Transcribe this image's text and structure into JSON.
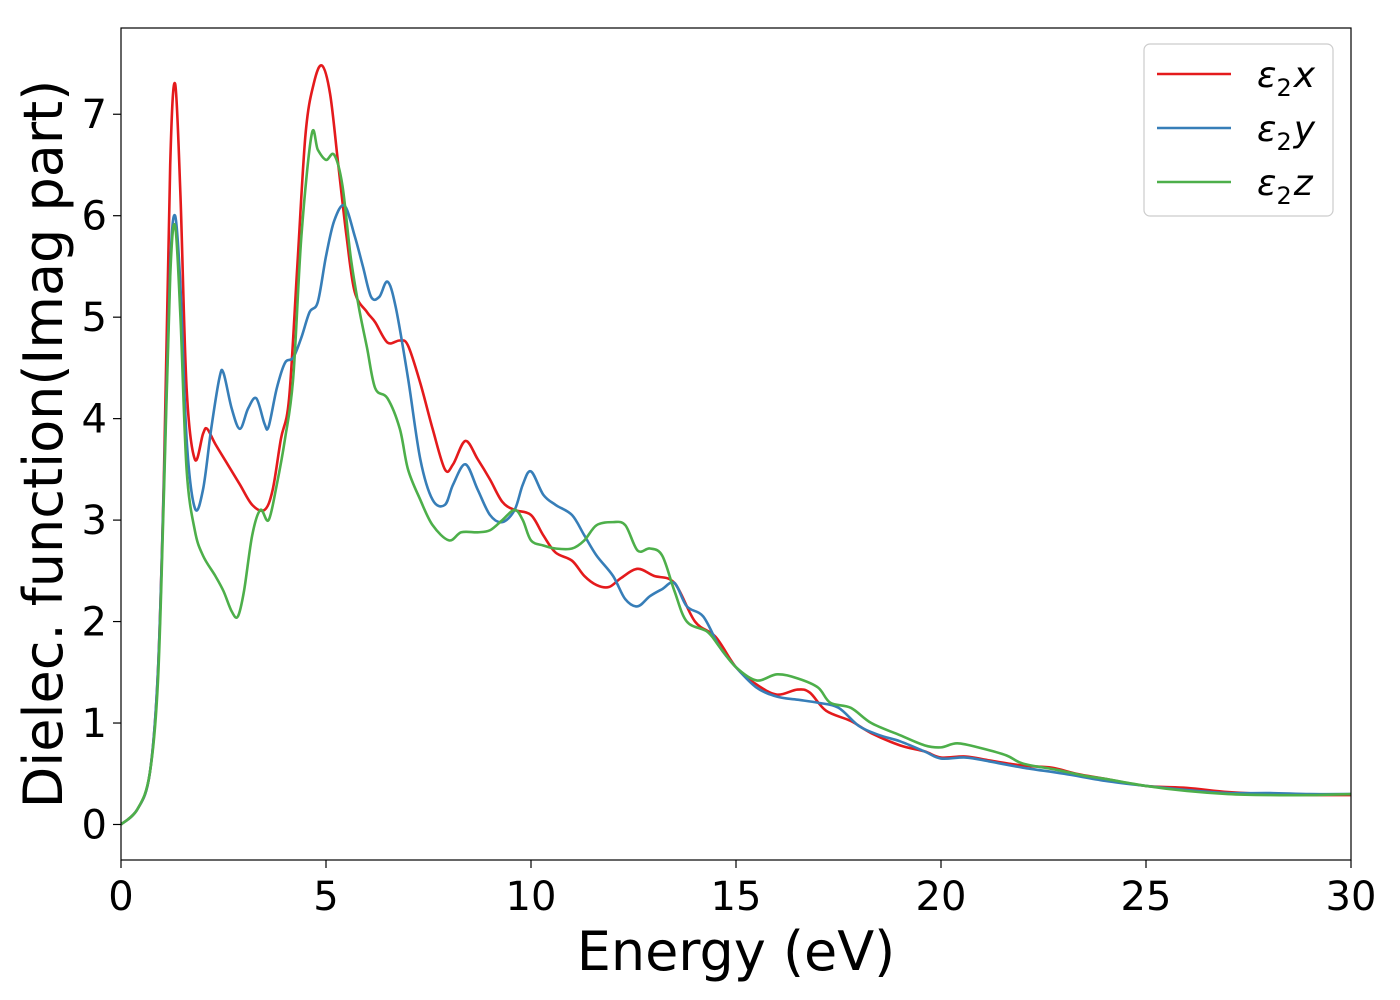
{
  "chart_data": {
    "type": "line",
    "xlabel": "Energy (eV)",
    "ylabel": "Dielec. function(Imag part)",
    "xlim": [
      0,
      30
    ],
    "ylim": [
      -0.35,
      7.85
    ],
    "xticks": [
      0,
      5,
      10,
      15,
      20,
      25,
      30
    ],
    "yticks": [
      0,
      1,
      2,
      3,
      4,
      5,
      6,
      7
    ],
    "grid": false,
    "legend": "top-right",
    "series": [
      {
        "name": "ε₂x",
        "legend": {
          "base": "ε",
          "sub": "2",
          "var": "x"
        },
        "color": "#e41a1c",
        "points": [
          [
            0,
            0
          ],
          [
            0.4,
            0.15
          ],
          [
            0.7,
            0.5
          ],
          [
            0.9,
            1.5
          ],
          [
            1.05,
            3.5
          ],
          [
            1.2,
            6.5
          ],
          [
            1.32,
            7.3
          ],
          [
            1.45,
            6.2
          ],
          [
            1.6,
            4.3
          ],
          [
            1.8,
            3.6
          ],
          [
            2.0,
            3.85
          ],
          [
            2.1,
            3.9
          ],
          [
            2.3,
            3.75
          ],
          [
            2.6,
            3.55
          ],
          [
            2.9,
            3.35
          ],
          [
            3.2,
            3.15
          ],
          [
            3.5,
            3.1
          ],
          [
            3.7,
            3.3
          ],
          [
            3.9,
            3.8
          ],
          [
            4.1,
            4.2
          ],
          [
            4.3,
            5.5
          ],
          [
            4.5,
            6.8
          ],
          [
            4.7,
            7.3
          ],
          [
            4.9,
            7.48
          ],
          [
            5.1,
            7.2
          ],
          [
            5.3,
            6.5
          ],
          [
            5.5,
            5.8
          ],
          [
            5.7,
            5.25
          ],
          [
            6.0,
            5.05
          ],
          [
            6.2,
            4.95
          ],
          [
            6.5,
            4.75
          ],
          [
            6.8,
            4.77
          ],
          [
            7.0,
            4.72
          ],
          [
            7.3,
            4.35
          ],
          [
            7.6,
            3.9
          ],
          [
            7.9,
            3.5
          ],
          [
            8.1,
            3.55
          ],
          [
            8.4,
            3.78
          ],
          [
            8.7,
            3.6
          ],
          [
            9.0,
            3.4
          ],
          [
            9.3,
            3.18
          ],
          [
            9.6,
            3.1
          ],
          [
            10.0,
            3.05
          ],
          [
            10.3,
            2.85
          ],
          [
            10.6,
            2.68
          ],
          [
            11.0,
            2.6
          ],
          [
            11.3,
            2.45
          ],
          [
            11.6,
            2.36
          ],
          [
            11.9,
            2.34
          ],
          [
            12.2,
            2.43
          ],
          [
            12.6,
            2.52
          ],
          [
            13.0,
            2.45
          ],
          [
            13.5,
            2.38
          ],
          [
            14.0,
            2.0
          ],
          [
            14.5,
            1.85
          ],
          [
            15.0,
            1.55
          ],
          [
            15.5,
            1.38
          ],
          [
            16.0,
            1.28
          ],
          [
            16.5,
            1.33
          ],
          [
            16.8,
            1.3
          ],
          [
            17.2,
            1.12
          ],
          [
            17.8,
            1.02
          ],
          [
            18.3,
            0.9
          ],
          [
            19.0,
            0.78
          ],
          [
            19.6,
            0.72
          ],
          [
            20.0,
            0.66
          ],
          [
            20.6,
            0.67
          ],
          [
            21.2,
            0.63
          ],
          [
            22.0,
            0.58
          ],
          [
            22.7,
            0.56
          ],
          [
            23.3,
            0.5
          ],
          [
            24.0,
            0.45
          ],
          [
            25.0,
            0.38
          ],
          [
            26.0,
            0.36
          ],
          [
            27.0,
            0.32
          ],
          [
            28.0,
            0.3
          ],
          [
            29.0,
            0.29
          ],
          [
            30.0,
            0.29
          ]
        ]
      },
      {
        "name": "ε₂y",
        "legend": {
          "base": "ε",
          "sub": "2",
          "var": "y"
        },
        "color": "#377eb8",
        "points": [
          [
            0,
            0
          ],
          [
            0.4,
            0.15
          ],
          [
            0.7,
            0.5
          ],
          [
            0.9,
            1.5
          ],
          [
            1.05,
            3.4
          ],
          [
            1.2,
            5.5
          ],
          [
            1.32,
            6.0
          ],
          [
            1.45,
            5.3
          ],
          [
            1.6,
            3.8
          ],
          [
            1.8,
            3.12
          ],
          [
            2.0,
            3.3
          ],
          [
            2.2,
            3.9
          ],
          [
            2.4,
            4.4
          ],
          [
            2.5,
            4.45
          ],
          [
            2.7,
            4.1
          ],
          [
            2.9,
            3.9
          ],
          [
            3.1,
            4.1
          ],
          [
            3.3,
            4.2
          ],
          [
            3.5,
            3.95
          ],
          [
            3.6,
            3.92
          ],
          [
            3.8,
            4.3
          ],
          [
            4.0,
            4.55
          ],
          [
            4.2,
            4.6
          ],
          [
            4.4,
            4.8
          ],
          [
            4.6,
            5.05
          ],
          [
            4.8,
            5.15
          ],
          [
            5.0,
            5.6
          ],
          [
            5.2,
            5.95
          ],
          [
            5.45,
            6.1
          ],
          [
            5.7,
            5.8
          ],
          [
            5.9,
            5.5
          ],
          [
            6.1,
            5.2
          ],
          [
            6.3,
            5.2
          ],
          [
            6.5,
            5.35
          ],
          [
            6.7,
            5.1
          ],
          [
            7.0,
            4.4
          ],
          [
            7.3,
            3.6
          ],
          [
            7.6,
            3.2
          ],
          [
            7.9,
            3.15
          ],
          [
            8.1,
            3.35
          ],
          [
            8.4,
            3.55
          ],
          [
            8.7,
            3.3
          ],
          [
            9.0,
            3.05
          ],
          [
            9.3,
            2.98
          ],
          [
            9.6,
            3.1
          ],
          [
            9.8,
            3.35
          ],
          [
            10.0,
            3.48
          ],
          [
            10.3,
            3.25
          ],
          [
            10.6,
            3.15
          ],
          [
            11.0,
            3.05
          ],
          [
            11.3,
            2.85
          ],
          [
            11.6,
            2.65
          ],
          [
            12.0,
            2.45
          ],
          [
            12.3,
            2.22
          ],
          [
            12.6,
            2.15
          ],
          [
            12.9,
            2.25
          ],
          [
            13.2,
            2.32
          ],
          [
            13.5,
            2.38
          ],
          [
            13.8,
            2.15
          ],
          [
            14.2,
            2.05
          ],
          [
            14.6,
            1.75
          ],
          [
            15.0,
            1.55
          ],
          [
            15.5,
            1.35
          ],
          [
            16.0,
            1.26
          ],
          [
            16.5,
            1.23
          ],
          [
            17.0,
            1.2
          ],
          [
            17.5,
            1.15
          ],
          [
            18.0,
            0.97
          ],
          [
            18.5,
            0.88
          ],
          [
            19.0,
            0.82
          ],
          [
            19.6,
            0.72
          ],
          [
            20.0,
            0.65
          ],
          [
            20.6,
            0.66
          ],
          [
            21.2,
            0.62
          ],
          [
            22.0,
            0.56
          ],
          [
            23.0,
            0.5
          ],
          [
            24.0,
            0.43
          ],
          [
            25.0,
            0.38
          ],
          [
            26.0,
            0.34
          ],
          [
            27.0,
            0.31
          ],
          [
            28.0,
            0.31
          ],
          [
            29.0,
            0.3
          ],
          [
            30.0,
            0.3
          ]
        ]
      },
      {
        "name": "ε₂z",
        "legend": {
          "base": "ε",
          "sub": "2",
          "var": "z"
        },
        "color": "#4daf4a",
        "points": [
          [
            0,
            0
          ],
          [
            0.4,
            0.15
          ],
          [
            0.7,
            0.5
          ],
          [
            0.9,
            1.4
          ],
          [
            1.05,
            3.3
          ],
          [
            1.2,
            5.4
          ],
          [
            1.32,
            5.9
          ],
          [
            1.45,
            5.0
          ],
          [
            1.6,
            3.5
          ],
          [
            1.8,
            2.9
          ],
          [
            2.0,
            2.65
          ],
          [
            2.3,
            2.45
          ],
          [
            2.5,
            2.3
          ],
          [
            2.7,
            2.1
          ],
          [
            2.85,
            2.05
          ],
          [
            3.0,
            2.3
          ],
          [
            3.2,
            2.85
          ],
          [
            3.4,
            3.1
          ],
          [
            3.6,
            3.0
          ],
          [
            3.8,
            3.35
          ],
          [
            4.0,
            3.8
          ],
          [
            4.2,
            4.4
          ],
          [
            4.4,
            5.8
          ],
          [
            4.65,
            6.8
          ],
          [
            4.8,
            6.65
          ],
          [
            5.0,
            6.55
          ],
          [
            5.2,
            6.6
          ],
          [
            5.4,
            6.3
          ],
          [
            5.6,
            5.6
          ],
          [
            5.8,
            5.1
          ],
          [
            6.0,
            4.7
          ],
          [
            6.2,
            4.3
          ],
          [
            6.5,
            4.2
          ],
          [
            6.8,
            3.9
          ],
          [
            7.0,
            3.5
          ],
          [
            7.3,
            3.2
          ],
          [
            7.6,
            2.95
          ],
          [
            8.0,
            2.8
          ],
          [
            8.3,
            2.88
          ],
          [
            8.7,
            2.88
          ],
          [
            9.0,
            2.9
          ],
          [
            9.3,
            3.0
          ],
          [
            9.6,
            3.1
          ],
          [
            9.8,
            3.0
          ],
          [
            10.0,
            2.8
          ],
          [
            10.3,
            2.75
          ],
          [
            10.6,
            2.72
          ],
          [
            11.0,
            2.72
          ],
          [
            11.3,
            2.8
          ],
          [
            11.6,
            2.95
          ],
          [
            12.0,
            2.98
          ],
          [
            12.3,
            2.95
          ],
          [
            12.6,
            2.7
          ],
          [
            12.9,
            2.72
          ],
          [
            13.2,
            2.65
          ],
          [
            13.5,
            2.3
          ],
          [
            13.8,
            2.0
          ],
          [
            14.3,
            1.9
          ],
          [
            14.6,
            1.75
          ],
          [
            15.0,
            1.55
          ],
          [
            15.5,
            1.42
          ],
          [
            16.0,
            1.48
          ],
          [
            16.5,
            1.44
          ],
          [
            17.0,
            1.35
          ],
          [
            17.3,
            1.2
          ],
          [
            17.8,
            1.15
          ],
          [
            18.3,
            1.0
          ],
          [
            19.0,
            0.88
          ],
          [
            19.6,
            0.78
          ],
          [
            20.0,
            0.76
          ],
          [
            20.4,
            0.8
          ],
          [
            21.0,
            0.75
          ],
          [
            21.6,
            0.68
          ],
          [
            22.0,
            0.6
          ],
          [
            22.8,
            0.54
          ],
          [
            23.5,
            0.48
          ],
          [
            24.0,
            0.45
          ],
          [
            25.0,
            0.38
          ],
          [
            26.0,
            0.33
          ],
          [
            27.0,
            0.3
          ],
          [
            28.0,
            0.29
          ],
          [
            29.0,
            0.29
          ],
          [
            30.0,
            0.3
          ]
        ]
      }
    ]
  }
}
